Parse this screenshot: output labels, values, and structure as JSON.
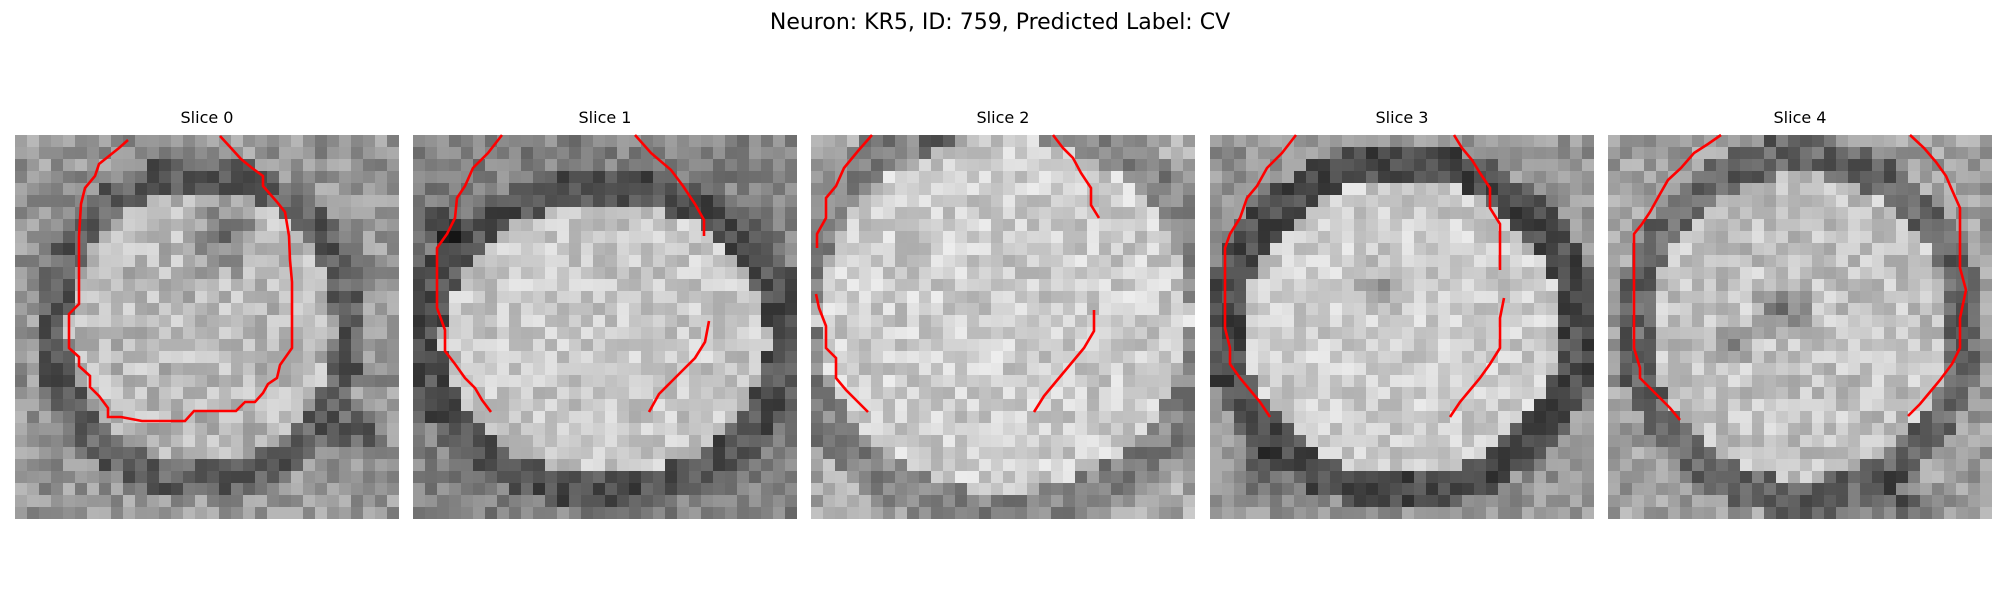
{
  "title": "Neuron: KR5, ID: 759, Predicted Label: CV",
  "colors": {
    "contour": "#ff0000",
    "background": "#ffffff"
  },
  "panels": [
    {
      "label": "Slice 0"
    },
    {
      "label": "Slice 1"
    },
    {
      "label": "Slice 2"
    },
    {
      "label": "Slice 3"
    },
    {
      "label": "Slice 4"
    }
  ]
}
